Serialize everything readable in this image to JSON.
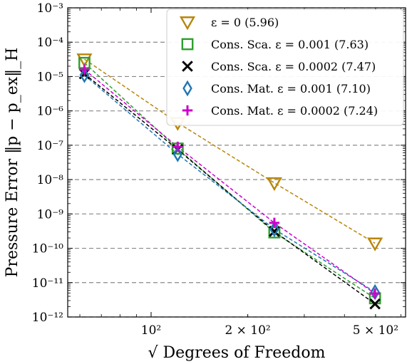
{
  "chart_data": {
    "type": "scatter",
    "xscale": "log",
    "yscale": "log",
    "xlim": [
      55,
      620
    ],
    "ylim": [
      1e-12,
      0.001
    ],
    "xlabel": "√ Degrees of Freedom",
    "ylabel": "Pressure Error ‖p − p_ex‖_H",
    "grid": "horizontal dashed at y decades",
    "legend_position": "top-right",
    "x_ticks": [
      {
        "value": 100,
        "label": "10²"
      },
      {
        "value": 200,
        "label": "2 × 10²"
      },
      {
        "value": 500,
        "label": "5 × 10²"
      }
    ],
    "y_ticks": [
      {
        "value": 0.001,
        "label": "10⁻³"
      },
      {
        "value": 0.0001,
        "label": "10⁻⁴"
      },
      {
        "value": 1e-05,
        "label": "10⁻⁵"
      },
      {
        "value": 1e-06,
        "label": "10⁻⁶"
      },
      {
        "value": 1e-07,
        "label": "10⁻⁷"
      },
      {
        "value": 1e-08,
        "label": "10⁻⁸"
      },
      {
        "value": 1e-09,
        "label": "10⁻⁹"
      },
      {
        "value": 1e-10,
        "label": "10⁻¹⁰"
      },
      {
        "value": 1e-11,
        "label": "10⁻¹¹"
      },
      {
        "value": 1e-12,
        "label": "10⁻¹²"
      }
    ],
    "series": [
      {
        "name": "ε = 0 (5.96)",
        "color": "#b8860b",
        "marker": "triangle-down",
        "x": [
          62,
          121,
          242,
          498
        ],
        "y": [
          3.2e-05,
          4.5e-07,
          8e-09,
          1.4e-10
        ]
      },
      {
        "name": "Cons. Sca. ε = 0.001 (7.63)",
        "color": "#2ca02c",
        "marker": "square",
        "x": [
          62,
          121,
          242,
          498
        ],
        "y": [
          2.5e-05,
          8e-08,
          2.9e-10,
          3.5e-12
        ]
      },
      {
        "name": "Cons. Sca. ε = 0.0002 (7.47)",
        "color": "#000000",
        "marker": "x",
        "x": [
          62,
          121,
          242,
          498
        ],
        "y": [
          1.2e-05,
          7.5e-08,
          3.1e-10,
          2.4e-12
        ]
      },
      {
        "name": "Cons. Mat. ε = 0.001 (7.10)",
        "color": "#1f77b4",
        "marker": "diamond",
        "x": [
          62,
          121,
          242,
          498
        ],
        "y": [
          1.1e-05,
          5.5e-08,
          3.6e-10,
          5.3e-12
        ]
      },
      {
        "name": "Cons. Mat. ε = 0.0002 (7.24)",
        "color": "#cc00cc",
        "marker": "plus",
        "x": [
          62,
          121,
          242,
          498
        ],
        "y": [
          1.6e-05,
          9e-08,
          5.5e-10,
          4.8e-12
        ]
      }
    ]
  }
}
